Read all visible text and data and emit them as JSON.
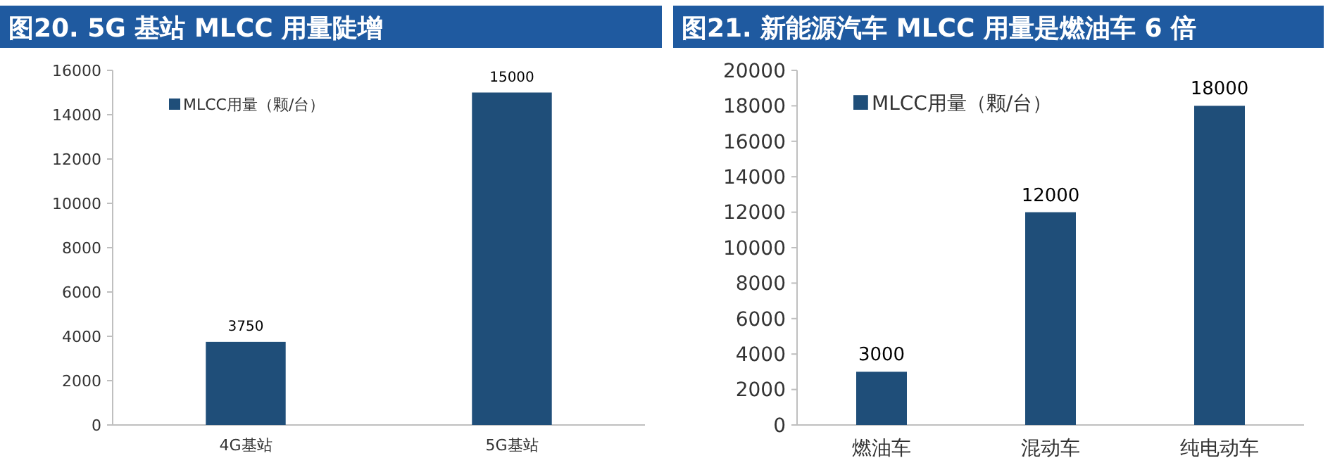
{
  "chart_data": [
    {
      "type": "bar",
      "title": "图20. 5G 基站 MLCC 用量陡增",
      "categories": [
        "4G基站",
        "5G基站"
      ],
      "series": [
        {
          "name": "MLCC用量（颗/台）",
          "color": "#1f4e79",
          "values": [
            3750,
            15000
          ]
        }
      ],
      "ylim": [
        0,
        16000
      ],
      "yticks": [
        0,
        2000,
        4000,
        6000,
        8000,
        10000,
        12000,
        14000,
        16000
      ],
      "grid": false,
      "legend": "top left",
      "data_labels": true
    },
    {
      "type": "bar",
      "title": "图21. 新能源汽车 MLCC 用量是燃油车 6 倍",
      "categories": [
        "燃油车",
        "混动车",
        "纯电动车"
      ],
      "series": [
        {
          "name": "MLCC用量（颗/台）",
          "color": "#1f4e79",
          "values": [
            3000,
            12000,
            18000
          ]
        }
      ],
      "ylim": [
        0,
        20000
      ],
      "yticks": [
        0,
        2000,
        4000,
        6000,
        8000,
        10000,
        12000,
        14000,
        16000,
        18000,
        20000
      ],
      "grid": false,
      "legend": "top left",
      "data_labels": true
    }
  ]
}
